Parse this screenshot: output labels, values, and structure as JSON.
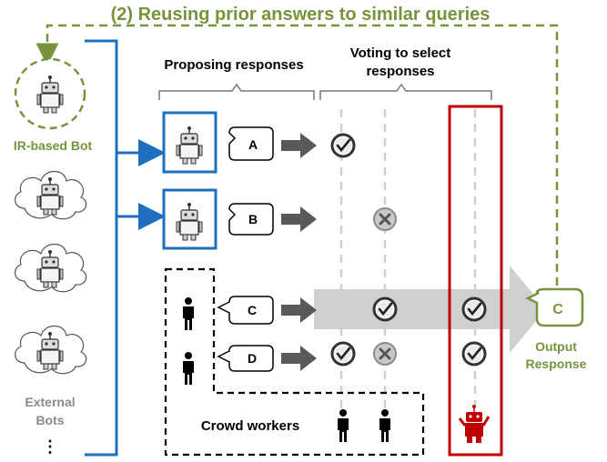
{
  "title": "(2) Reusing prior answers to similar queries",
  "headers": {
    "proposing": "Proposing responses",
    "voting_line1": "Voting to select",
    "voting_line2": "responses"
  },
  "bots": {
    "ir_label": "IR-based Bot",
    "external_line1": "External",
    "external_line2": "Bots",
    "ellipsis": "⋮"
  },
  "responses": [
    "A",
    "B",
    "C",
    "D"
  ],
  "crowd_label": "Crowd workers",
  "output": {
    "value": "C",
    "label_line1": "Output",
    "label_line2": "Response"
  },
  "colors": {
    "blue": "#1f6fbf",
    "green": "#77933c",
    "red": "#c00000",
    "arrow_gray": "#595959",
    "band_gray": "#d0d0d0"
  },
  "icons": [
    "robot-icon",
    "person-icon",
    "check-icon",
    "x-icon",
    "wikipedia-icon"
  ]
}
